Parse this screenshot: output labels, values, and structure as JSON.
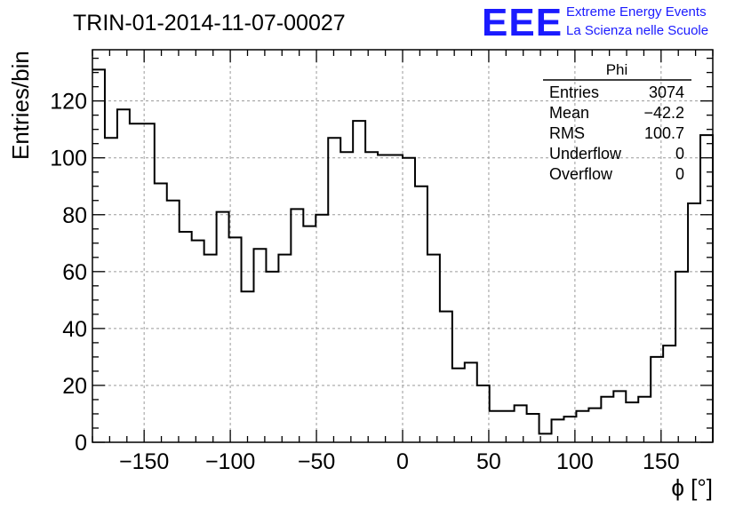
{
  "title": "TRIN-01-2014-11-07-00027",
  "logo": {
    "mark": "EEE",
    "line1": "Extreme Energy Events",
    "line2": "La Scienza nelle Scuole",
    "color": "#1a1aff"
  },
  "stats": {
    "name": "Phi",
    "rows": [
      {
        "label": "Entries",
        "value": "3074"
      },
      {
        "label": "Mean",
        "value": "−42.2"
      },
      {
        "label": "RMS",
        "value": "100.7"
      },
      {
        "label": "Underflow",
        "value": "0"
      },
      {
        "label": "Overflow",
        "value": "0"
      }
    ]
  },
  "chart_data": {
    "type": "bar",
    "style": "step-histogram",
    "xlabel": "ϕ [°]",
    "ylabel": "Entries/bin",
    "xlim": [
      -180,
      180
    ],
    "ylim": [
      0,
      138
    ],
    "bin_width": 7.2,
    "x_ticks": [
      -150,
      -100,
      -50,
      0,
      50,
      100,
      150
    ],
    "x_tick_labels": [
      "−150",
      "−100",
      "−50",
      "0",
      "50",
      "100",
      "150"
    ],
    "y_ticks": [
      0,
      20,
      40,
      60,
      80,
      100,
      120
    ],
    "y_tick_labels": [
      "0",
      "20",
      "40",
      "60",
      "80",
      "100",
      "120"
    ],
    "grid": true,
    "line_color": "#000000",
    "values": [
      131,
      107,
      117,
      112,
      112,
      91,
      85,
      74,
      71,
      66,
      81,
      72,
      53,
      68,
      60,
      66,
      82,
      76,
      80,
      107,
      102,
      113,
      102,
      101,
      101,
      100,
      90,
      66,
      46,
      26,
      28,
      20,
      11,
      11,
      13,
      10,
      3,
      8,
      9,
      11,
      12,
      16,
      18,
      14,
      16,
      30,
      34,
      60,
      84,
      108
    ]
  }
}
